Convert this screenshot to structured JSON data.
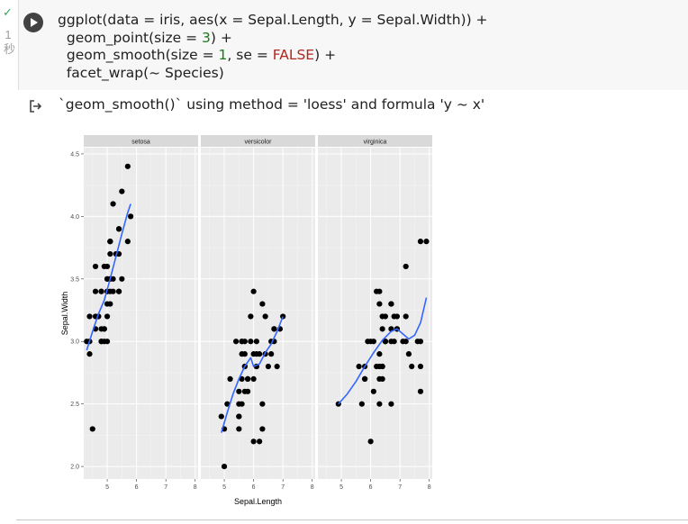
{
  "cell": {
    "status_check": "✓",
    "exec_time_number": "1",
    "exec_time_unit": "秒",
    "code_line_1": "ggplot(data = iris, aes(x = Sepal.Length, y = Sepal.Width)) +",
    "code_line_2_pre": "  geom_point(size = ",
    "code_line_2_num": "3",
    "code_line_2_post": ") +",
    "code_line_3_pre": "  geom_smooth(size = ",
    "code_line_3_num": "1",
    "code_line_3_mid": ", se = ",
    "code_line_3_kw": "FALSE",
    "code_line_3_post": ") +",
    "code_line_4": "  facet_wrap(~ Species)",
    "output_message": "`geom_smooth()` using method = 'loess' and formula 'y ~ x'"
  },
  "icons": {
    "run": "play-icon",
    "output": "output-redirect-icon"
  },
  "colors": {
    "panel_bg": "#ebebeb",
    "strip_bg": "#d9d9d9",
    "point": "#000000",
    "smooth": "#3366ff"
  },
  "chart_data": {
    "type": "scatter",
    "xlabel": "Sepal.Length",
    "ylabel": "Sepal.Width",
    "xlim": [
      4.2,
      8.1
    ],
    "ylim": [
      1.9,
      4.55
    ],
    "x_ticks": [
      5,
      6,
      7,
      8
    ],
    "y_ticks": [
      2.0,
      2.5,
      3.0,
      3.5,
      4.0,
      4.5
    ],
    "x_tick_labels": [
      "5",
      "6",
      "7",
      "8"
    ],
    "y_tick_labels": [
      "2.0",
      "2.5",
      "3.0",
      "3.5",
      "4.0",
      "4.5"
    ],
    "grid": true,
    "facets": [
      {
        "name": "setosa",
        "points": [
          [
            5.1,
            3.5
          ],
          [
            4.9,
            3.0
          ],
          [
            4.7,
            3.2
          ],
          [
            4.6,
            3.1
          ],
          [
            5.0,
            3.6
          ],
          [
            5.4,
            3.9
          ],
          [
            4.6,
            3.4
          ],
          [
            5.0,
            3.4
          ],
          [
            4.4,
            2.9
          ],
          [
            4.9,
            3.1
          ],
          [
            5.4,
            3.7
          ],
          [
            4.8,
            3.4
          ],
          [
            4.8,
            3.0
          ],
          [
            4.3,
            3.0
          ],
          [
            5.8,
            4.0
          ],
          [
            5.7,
            4.4
          ],
          [
            5.4,
            3.9
          ],
          [
            5.1,
            3.5
          ],
          [
            5.7,
            3.8
          ],
          [
            5.1,
            3.8
          ],
          [
            5.4,
            3.4
          ],
          [
            5.1,
            3.7
          ],
          [
            4.6,
            3.6
          ],
          [
            5.1,
            3.3
          ],
          [
            4.8,
            3.4
          ],
          [
            5.0,
            3.0
          ],
          [
            5.0,
            3.4
          ],
          [
            5.2,
            3.5
          ],
          [
            5.2,
            3.4
          ],
          [
            4.7,
            3.2
          ],
          [
            4.8,
            3.1
          ],
          [
            5.4,
            3.4
          ],
          [
            5.2,
            4.1
          ],
          [
            5.5,
            4.2
          ],
          [
            4.9,
            3.1
          ],
          [
            5.0,
            3.2
          ],
          [
            5.5,
            3.5
          ],
          [
            4.9,
            3.6
          ],
          [
            4.4,
            3.0
          ],
          [
            5.1,
            3.4
          ],
          [
            5.0,
            3.5
          ],
          [
            4.5,
            2.3
          ],
          [
            4.4,
            3.2
          ],
          [
            5.0,
            3.5
          ],
          [
            5.1,
            3.8
          ],
          [
            4.8,
            3.0
          ],
          [
            5.1,
            3.8
          ],
          [
            4.6,
            3.2
          ],
          [
            5.3,
            3.7
          ],
          [
            5.0,
            3.3
          ]
        ],
        "smooth": [
          [
            4.3,
            2.93
          ],
          [
            4.5,
            3.08
          ],
          [
            4.7,
            3.22
          ],
          [
            4.9,
            3.33
          ],
          [
            5.1,
            3.5
          ],
          [
            5.3,
            3.68
          ],
          [
            5.5,
            3.86
          ],
          [
            5.7,
            4.03
          ],
          [
            5.8,
            4.1
          ]
        ]
      },
      {
        "name": "versicolor",
        "points": [
          [
            7.0,
            3.2
          ],
          [
            6.4,
            3.2
          ],
          [
            6.9,
            3.1
          ],
          [
            5.5,
            2.3
          ],
          [
            6.5,
            2.8
          ],
          [
            5.7,
            2.8
          ],
          [
            6.3,
            3.3
          ],
          [
            4.9,
            2.4
          ],
          [
            6.6,
            2.9
          ],
          [
            5.2,
            2.7
          ],
          [
            5.0,
            2.0
          ],
          [
            5.9,
            3.0
          ],
          [
            6.0,
            2.2
          ],
          [
            6.1,
            2.9
          ],
          [
            5.6,
            2.9
          ],
          [
            6.7,
            3.1
          ],
          [
            5.6,
            3.0
          ],
          [
            5.8,
            2.7
          ],
          [
            6.2,
            2.2
          ],
          [
            5.6,
            2.5
          ],
          [
            5.9,
            3.2
          ],
          [
            6.1,
            2.8
          ],
          [
            6.3,
            2.5
          ],
          [
            6.1,
            2.8
          ],
          [
            6.4,
            2.9
          ],
          [
            6.6,
            3.0
          ],
          [
            6.8,
            2.8
          ],
          [
            6.7,
            3.0
          ],
          [
            6.0,
            2.9
          ],
          [
            5.7,
            2.6
          ],
          [
            5.5,
            2.4
          ],
          [
            5.5,
            2.4
          ],
          [
            5.8,
            2.7
          ],
          [
            6.0,
            2.7
          ],
          [
            5.4,
            3.0
          ],
          [
            6.0,
            3.4
          ],
          [
            6.7,
            3.1
          ],
          [
            6.3,
            2.3
          ],
          [
            5.6,
            3.0
          ],
          [
            5.5,
            2.5
          ],
          [
            5.5,
            2.6
          ],
          [
            6.1,
            3.0
          ],
          [
            5.8,
            2.6
          ],
          [
            5.0,
            2.3
          ],
          [
            5.6,
            2.7
          ],
          [
            5.7,
            3.0
          ],
          [
            5.7,
            2.9
          ],
          [
            6.2,
            2.9
          ],
          [
            5.1,
            2.5
          ],
          [
            5.7,
            2.8
          ]
        ],
        "smooth": [
          [
            4.9,
            2.27
          ],
          [
            5.1,
            2.43
          ],
          [
            5.3,
            2.58
          ],
          [
            5.5,
            2.7
          ],
          [
            5.7,
            2.8
          ],
          [
            5.9,
            2.87
          ],
          [
            6.0,
            2.8
          ],
          [
            6.2,
            2.82
          ],
          [
            6.4,
            2.91
          ],
          [
            6.6,
            2.98
          ],
          [
            6.8,
            3.08
          ],
          [
            7.0,
            3.2
          ]
        ]
      },
      {
        "name": "virginica",
        "points": [
          [
            6.3,
            3.3
          ],
          [
            5.8,
            2.7
          ],
          [
            7.1,
            3.0
          ],
          [
            6.3,
            2.9
          ],
          [
            6.5,
            3.0
          ],
          [
            7.6,
            3.0
          ],
          [
            4.9,
            2.5
          ],
          [
            7.3,
            2.9
          ],
          [
            6.7,
            2.5
          ],
          [
            7.2,
            3.6
          ],
          [
            6.5,
            3.2
          ],
          [
            6.4,
            2.7
          ],
          [
            6.8,
            3.0
          ],
          [
            5.7,
            2.5
          ],
          [
            5.8,
            2.8
          ],
          [
            6.4,
            3.2
          ],
          [
            6.5,
            3.0
          ],
          [
            7.7,
            3.8
          ],
          [
            7.7,
            2.6
          ],
          [
            6.0,
            2.2
          ],
          [
            6.9,
            3.2
          ],
          [
            5.6,
            2.8
          ],
          [
            7.7,
            2.8
          ],
          [
            6.3,
            2.7
          ],
          [
            6.7,
            3.3
          ],
          [
            7.2,
            3.2
          ],
          [
            6.2,
            2.8
          ],
          [
            6.1,
            3.0
          ],
          [
            6.4,
            2.8
          ],
          [
            7.2,
            3.0
          ],
          [
            7.4,
            2.8
          ],
          [
            7.9,
            3.8
          ],
          [
            6.4,
            2.8
          ],
          [
            6.3,
            2.8
          ],
          [
            6.1,
            2.6
          ],
          [
            7.7,
            3.0
          ],
          [
            6.3,
            3.4
          ],
          [
            6.4,
            3.1
          ],
          [
            6.0,
            3.0
          ],
          [
            6.9,
            3.1
          ],
          [
            6.7,
            3.1
          ],
          [
            6.9,
            3.1
          ],
          [
            5.8,
            2.7
          ],
          [
            6.8,
            3.2
          ],
          [
            6.7,
            3.3
          ],
          [
            6.7,
            3.0
          ],
          [
            6.3,
            2.5
          ],
          [
            6.5,
            3.0
          ],
          [
            6.2,
            3.4
          ],
          [
            5.9,
            3.0
          ]
        ],
        "smooth": [
          [
            4.9,
            2.5
          ],
          [
            5.2,
            2.58
          ],
          [
            5.5,
            2.68
          ],
          [
            5.8,
            2.8
          ],
          [
            6.1,
            2.91
          ],
          [
            6.4,
            3.01
          ],
          [
            6.7,
            3.08
          ],
          [
            6.9,
            3.1
          ],
          [
            7.1,
            3.06
          ],
          [
            7.3,
            3.02
          ],
          [
            7.5,
            3.05
          ],
          [
            7.7,
            3.15
          ],
          [
            7.9,
            3.35
          ]
        ]
      }
    ]
  }
}
